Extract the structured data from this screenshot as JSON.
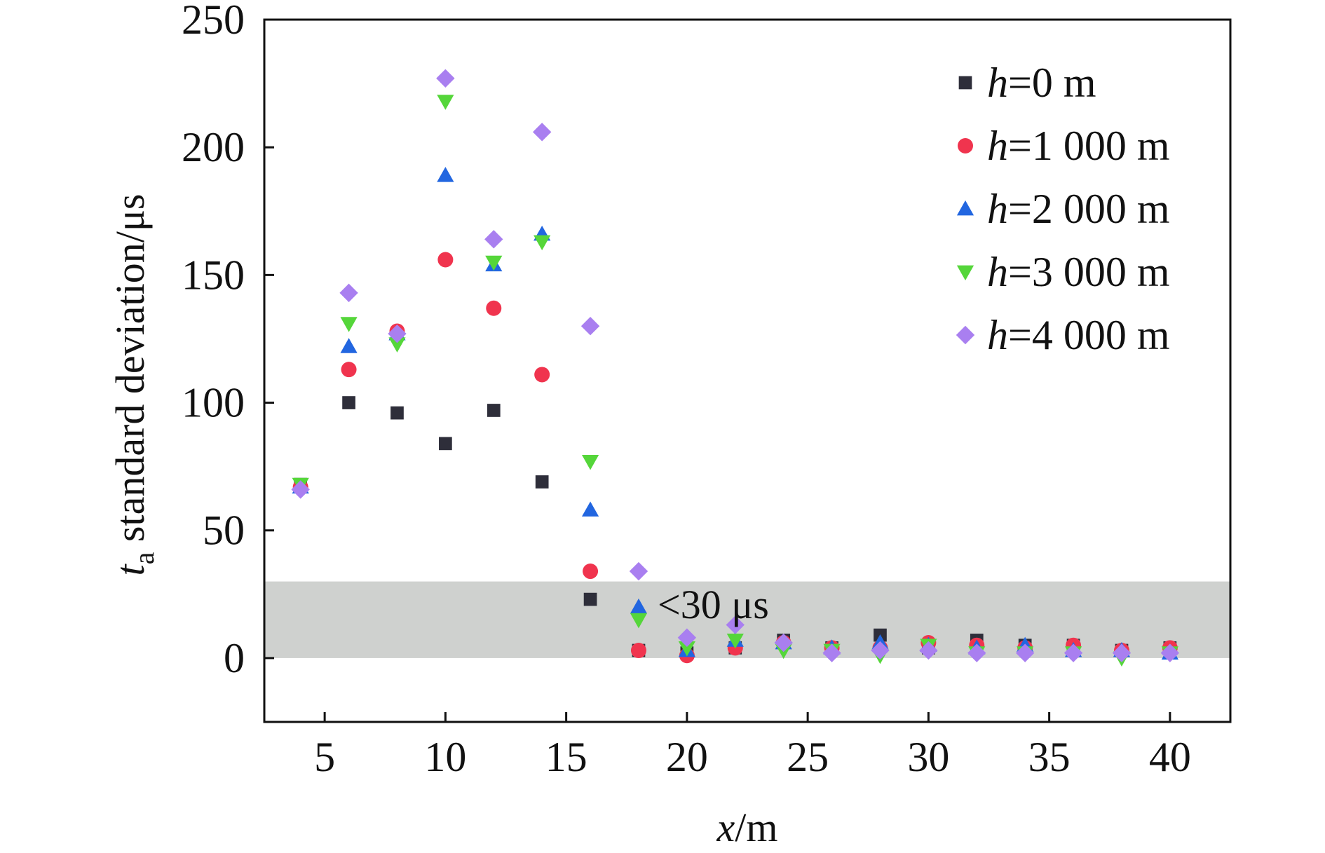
{
  "chart_data": {
    "type": "scatter",
    "title": "",
    "xlabel": {
      "var": "x",
      "unit": "/m"
    },
    "ylabel": {
      "var": "t",
      "sub": "a",
      "rest": " standard deviation/μs"
    },
    "xlim": [
      2.5,
      42.5
    ],
    "ylim": [
      -25,
      250
    ],
    "xticks": [
      5,
      10,
      15,
      20,
      25,
      30,
      35,
      40
    ],
    "yticks": [
      0,
      50,
      100,
      150,
      200,
      250
    ],
    "grid": false,
    "legend_position": "top-right",
    "band": {
      "y_from": 0,
      "y_to": 30,
      "color": "#cfd1cf",
      "label": "<30 μs"
    },
    "x": [
      4,
      6,
      8,
      10,
      12,
      14,
      16,
      18,
      20,
      22,
      24,
      26,
      28,
      30,
      32,
      34,
      36,
      38,
      40
    ],
    "series": [
      {
        "name_var": "h",
        "name_rest": "=0 m",
        "marker": "square",
        "color": "#2e2e3a",
        "values": [
          68,
          100,
          96,
          84,
          97,
          69,
          23,
          3,
          2,
          4,
          7,
          4,
          9,
          4,
          7,
          5,
          5,
          3,
          4
        ]
      },
      {
        "name_var": "h",
        "name_rest": "=1 000 m",
        "marker": "circle",
        "color": "#f0344e",
        "values": [
          67,
          113,
          128,
          156,
          137,
          111,
          34,
          3,
          1,
          4,
          6,
          4,
          4,
          6,
          5,
          4,
          5,
          3,
          4
        ]
      },
      {
        "name_var": "h",
        "name_rest": "=2 000 m",
        "marker": "triangle-up",
        "color": "#2266e0",
        "values": [
          67,
          122,
          127,
          189,
          154,
          166,
          58,
          20,
          3,
          7,
          6,
          4,
          6,
          5,
          4,
          5,
          3,
          3,
          2
        ]
      },
      {
        "name_var": "h",
        "name_rest": "=3 000 m",
        "marker": "triangle-down",
        "color": "#55d63a",
        "values": [
          68,
          131,
          123,
          218,
          155,
          163,
          77,
          15,
          4,
          7,
          3,
          3,
          1,
          5,
          2,
          2,
          2,
          0,
          2
        ]
      },
      {
        "name_var": "h",
        "name_rest": "=4 000 m",
        "marker": "diamond",
        "color": "#a97ff0",
        "values": [
          66,
          143,
          127,
          227,
          164,
          206,
          130,
          34,
          8,
          13,
          6,
          2,
          3,
          3,
          2,
          2,
          2,
          2,
          2
        ]
      }
    ]
  }
}
